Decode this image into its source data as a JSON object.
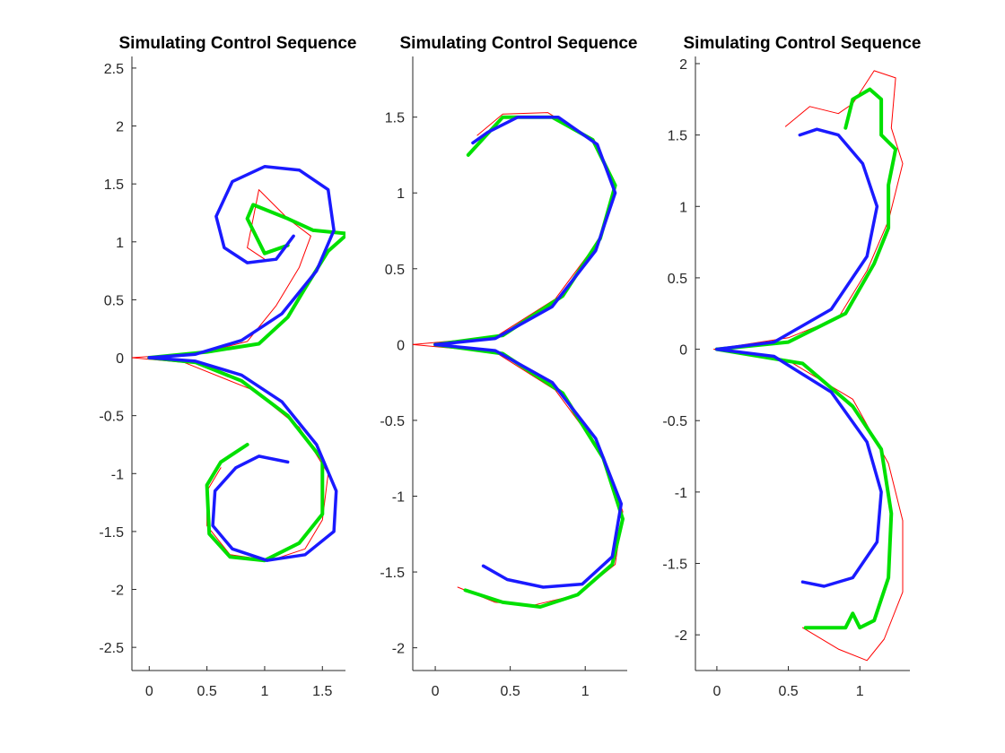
{
  "figure": {
    "background": "#ffffff"
  },
  "chart_data": [
    {
      "type": "line",
      "title": "Simulating Control Sequence",
      "xlabel": "",
      "ylabel": "",
      "xlim": [
        -0.15,
        1.7
      ],
      "ylim": [
        -2.7,
        2.6
      ],
      "xticks": [
        0,
        0.5,
        1,
        1.5
      ],
      "xtick_labels": [
        "0",
        "0.5",
        "1",
        "1.5"
      ],
      "yticks": [
        -2.5,
        -2,
        -1.5,
        -1,
        -0.5,
        0,
        0.5,
        1,
        1.5,
        2,
        2.5
      ],
      "ytick_labels": [
        "-2.5",
        "-2",
        "-1.5",
        "-1",
        "-0.5",
        "0",
        "0.5",
        "1",
        "1.5",
        "2",
        "2.5"
      ],
      "grid": false,
      "series": [
        {
          "color": "#ff0000",
          "width": 1,
          "points": [
            [
              -0.15,
              0
            ],
            [
              0.3,
              -0.04
            ],
            [
              0.9,
              -0.28
            ],
            [
              1.3,
              -0.6
            ],
            [
              1.55,
              -1.0
            ],
            [
              1.5,
              -1.4
            ],
            [
              1.35,
              -1.65
            ],
            [
              1.05,
              -1.75
            ],
            [
              0.7,
              -1.7
            ],
            [
              0.5,
              -1.45
            ],
            [
              0.5,
              -1.15
            ],
            [
              0.62,
              -0.95
            ]
          ]
        },
        {
          "color": "#ff0000",
          "width": 1,
          "points": [
            [
              -0.15,
              0
            ],
            [
              0.45,
              0.04
            ],
            [
              0.85,
              0.14
            ],
            [
              1.1,
              0.45
            ],
            [
              1.3,
              0.78
            ],
            [
              1.4,
              1.05
            ],
            [
              1.2,
              1.2
            ],
            [
              0.95,
              1.45
            ],
            [
              0.9,
              1.2
            ],
            [
              0.85,
              0.95
            ],
            [
              1.0,
              0.85
            ]
          ]
        },
        {
          "color": "#00e000",
          "width": 4,
          "points": [
            [
              0,
              0
            ],
            [
              0.4,
              -0.04
            ],
            [
              0.8,
              -0.2
            ],
            [
              1.2,
              -0.5
            ],
            [
              1.5,
              -0.88
            ],
            [
              1.5,
              -1.35
            ],
            [
              1.3,
              -1.6
            ],
            [
              1.0,
              -1.75
            ],
            [
              0.7,
              -1.72
            ],
            [
              0.52,
              -1.52
            ],
            [
              0.5,
              -1.1
            ],
            [
              0.62,
              -0.9
            ],
            [
              0.85,
              -0.75
            ]
          ]
        },
        {
          "color": "#00e000",
          "width": 4,
          "points": [
            [
              0,
              0
            ],
            [
              0.5,
              0.05
            ],
            [
              0.95,
              0.12
            ],
            [
              1.2,
              0.35
            ],
            [
              1.35,
              0.6
            ],
            [
              1.55,
              0.92
            ],
            [
              1.72,
              1.07
            ],
            [
              1.42,
              1.1
            ],
            [
              1.2,
              1.2
            ],
            [
              0.9,
              1.32
            ],
            [
              0.85,
              1.2
            ],
            [
              1.0,
              0.9
            ],
            [
              1.2,
              0.97
            ]
          ]
        },
        {
          "color": "#1a1aff",
          "width": 3.5,
          "points": [
            [
              0,
              0
            ],
            [
              0.4,
              -0.03
            ],
            [
              0.8,
              -0.15
            ],
            [
              1.15,
              -0.38
            ],
            [
              1.45,
              -0.75
            ],
            [
              1.62,
              -1.15
            ],
            [
              1.6,
              -1.5
            ],
            [
              1.35,
              -1.7
            ],
            [
              1.02,
              -1.75
            ],
            [
              0.72,
              -1.65
            ],
            [
              0.55,
              -1.45
            ],
            [
              0.57,
              -1.15
            ],
            [
              0.75,
              -0.95
            ],
            [
              0.95,
              -0.85
            ],
            [
              1.2,
              -0.9
            ]
          ]
        },
        {
          "color": "#1a1aff",
          "width": 3.5,
          "points": [
            [
              0,
              0
            ],
            [
              0.4,
              0.03
            ],
            [
              0.8,
              0.15
            ],
            [
              1.15,
              0.38
            ],
            [
              1.45,
              0.75
            ],
            [
              1.6,
              1.1
            ],
            [
              1.55,
              1.45
            ],
            [
              1.3,
              1.62
            ],
            [
              1.0,
              1.65
            ],
            [
              0.72,
              1.52
            ],
            [
              0.58,
              1.22
            ],
            [
              0.65,
              0.95
            ],
            [
              0.85,
              0.82
            ],
            [
              1.1,
              0.85
            ],
            [
              1.25,
              1.05
            ]
          ]
        }
      ]
    },
    {
      "type": "line",
      "title": "Simulating Control Sequence",
      "xlabel": "",
      "ylabel": "",
      "xlim": [
        -0.15,
        1.28
      ],
      "ylim": [
        -2.15,
        1.9
      ],
      "xticks": [
        0,
        0.5,
        1
      ],
      "xtick_labels": [
        "0",
        "0.5",
        "1"
      ],
      "yticks": [
        -2,
        -1.5,
        -1,
        -0.5,
        0,
        0.5,
        1,
        1.5
      ],
      "ytick_labels": [
        "-2",
        "-1.5",
        "-1",
        "-0.5",
        "0",
        "0.5",
        "1",
        "1.5"
      ],
      "grid": false,
      "series": [
        {
          "color": "#ff0000",
          "width": 1,
          "points": [
            [
              -0.15,
              0
            ],
            [
              0.4,
              -0.05
            ],
            [
              0.8,
              -0.3
            ],
            [
              1.1,
              -0.7
            ],
            [
              1.25,
              -1.1
            ],
            [
              1.2,
              -1.45
            ],
            [
              0.95,
              -1.65
            ],
            [
              0.65,
              -1.72
            ],
            [
              0.4,
              -1.7
            ],
            [
              0.15,
              -1.6
            ]
          ]
        },
        {
          "color": "#ff0000",
          "width": 1,
          "points": [
            [
              -0.15,
              0
            ],
            [
              0.4,
              0.05
            ],
            [
              0.8,
              0.3
            ],
            [
              1.1,
              0.7
            ],
            [
              1.2,
              1.05
            ],
            [
              1.05,
              1.35
            ],
            [
              0.75,
              1.53
            ],
            [
              0.45,
              1.52
            ],
            [
              0.28,
              1.38
            ]
          ]
        },
        {
          "color": "#00e000",
          "width": 4,
          "points": [
            [
              0,
              0
            ],
            [
              0.45,
              -0.06
            ],
            [
              0.85,
              -0.32
            ],
            [
              1.12,
              -0.75
            ],
            [
              1.25,
              -1.15
            ],
            [
              1.18,
              -1.45
            ],
            [
              0.95,
              -1.65
            ],
            [
              0.7,
              -1.73
            ],
            [
              0.45,
              -1.7
            ],
            [
              0.2,
              -1.62
            ]
          ]
        },
        {
          "color": "#00e000",
          "width": 4,
          "points": [
            [
              0,
              0
            ],
            [
              0.45,
              0.06
            ],
            [
              0.85,
              0.32
            ],
            [
              1.1,
              0.7
            ],
            [
              1.2,
              1.05
            ],
            [
              1.05,
              1.35
            ],
            [
              0.78,
              1.5
            ],
            [
              0.45,
              1.5
            ],
            [
              0.22,
              1.25
            ]
          ]
        },
        {
          "color": "#1a1aff",
          "width": 3.5,
          "points": [
            [
              0,
              0
            ],
            [
              0.4,
              -0.04
            ],
            [
              0.78,
              -0.25
            ],
            [
              1.07,
              -0.62
            ],
            [
              1.24,
              -1.05
            ],
            [
              1.18,
              -1.4
            ],
            [
              0.98,
              -1.58
            ],
            [
              0.72,
              -1.6
            ],
            [
              0.48,
              -1.55
            ],
            [
              0.32,
              -1.46
            ]
          ]
        },
        {
          "color": "#1a1aff",
          "width": 3.5,
          "points": [
            [
              0,
              0
            ],
            [
              0.4,
              0.04
            ],
            [
              0.78,
              0.25
            ],
            [
              1.07,
              0.62
            ],
            [
              1.2,
              1.0
            ],
            [
              1.08,
              1.32
            ],
            [
              0.82,
              1.5
            ],
            [
              0.55,
              1.5
            ],
            [
              0.35,
              1.4
            ],
            [
              0.25,
              1.33
            ]
          ]
        }
      ]
    },
    {
      "type": "line",
      "title": "Simulating Control Sequence",
      "xlabel": "",
      "ylabel": "",
      "xlim": [
        -0.15,
        1.35
      ],
      "ylim": [
        -2.25,
        2.05
      ],
      "xticks": [
        0,
        0.5,
        1
      ],
      "xtick_labels": [
        "0",
        "0.5",
        "1"
      ],
      "yticks": [
        -2,
        -1.5,
        -1,
        -0.5,
        0,
        0.5,
        1,
        1.5,
        2
      ],
      "ytick_labels": [
        "-2",
        "-1.5",
        "-1",
        "-0.5",
        "0",
        "0.5",
        "1",
        "1.5",
        "2"
      ],
      "grid": false,
      "series": [
        {
          "color": "#ff0000",
          "width": 1,
          "points": [
            [
              -0.02,
              0
            ],
            [
              0.5,
              -0.08
            ],
            [
              0.95,
              -0.35
            ],
            [
              1.2,
              -0.8
            ],
            [
              1.3,
              -1.2
            ],
            [
              1.3,
              -1.7
            ],
            [
              1.17,
              -2.03
            ],
            [
              1.05,
              -2.18
            ],
            [
              0.85,
              -2.1
            ],
            [
              0.6,
              -1.95
            ]
          ]
        },
        {
          "color": "#ff0000",
          "width": 1,
          "points": [
            [
              -0.02,
              0
            ],
            [
              0.5,
              0.08
            ],
            [
              0.85,
              0.22
            ],
            [
              1.05,
              0.55
            ],
            [
              1.2,
              0.9
            ],
            [
              1.25,
              1.1
            ],
            [
              1.3,
              1.3
            ],
            [
              1.22,
              1.55
            ],
            [
              1.25,
              1.9
            ],
            [
              1.1,
              1.95
            ],
            [
              0.95,
              1.72
            ],
            [
              0.85,
              1.65
            ],
            [
              0.65,
              1.7
            ],
            [
              0.48,
              1.56
            ]
          ]
        },
        {
          "color": "#00e000",
          "width": 4,
          "points": [
            [
              0,
              0
            ],
            [
              0.6,
              -0.1
            ],
            [
              0.95,
              -0.4
            ],
            [
              1.15,
              -0.7
            ],
            [
              1.22,
              -1.15
            ],
            [
              1.2,
              -1.6
            ],
            [
              1.1,
              -1.9
            ],
            [
              1.0,
              -1.95
            ],
            [
              0.95,
              -1.85
            ],
            [
              0.9,
              -1.95
            ],
            [
              0.75,
              -1.95
            ],
            [
              0.62,
              -1.95
            ]
          ]
        },
        {
          "color": "#00e000",
          "width": 4,
          "points": [
            [
              0,
              0
            ],
            [
              0.5,
              0.05
            ],
            [
              0.9,
              0.25
            ],
            [
              1.1,
              0.6
            ],
            [
              1.2,
              0.85
            ],
            [
              1.2,
              1.15
            ],
            [
              1.25,
              1.4
            ],
            [
              1.15,
              1.5
            ],
            [
              1.15,
              1.75
            ],
            [
              1.07,
              1.82
            ],
            [
              0.95,
              1.75
            ],
            [
              0.9,
              1.55
            ]
          ]
        },
        {
          "color": "#1a1aff",
          "width": 3.5,
          "points": [
            [
              0,
              0
            ],
            [
              0.4,
              -0.05
            ],
            [
              0.8,
              -0.3
            ],
            [
              1.05,
              -0.65
            ],
            [
              1.15,
              -1.0
            ],
            [
              1.12,
              -1.35
            ],
            [
              0.95,
              -1.6
            ],
            [
              0.75,
              -1.66
            ],
            [
              0.6,
              -1.63
            ]
          ]
        },
        {
          "color": "#1a1aff",
          "width": 3.5,
          "points": [
            [
              0,
              0
            ],
            [
              0.4,
              0.05
            ],
            [
              0.8,
              0.28
            ],
            [
              1.05,
              0.65
            ],
            [
              1.12,
              1.0
            ],
            [
              1.02,
              1.3
            ],
            [
              0.85,
              1.5
            ],
            [
              0.7,
              1.54
            ],
            [
              0.58,
              1.5
            ]
          ]
        }
      ]
    }
  ]
}
